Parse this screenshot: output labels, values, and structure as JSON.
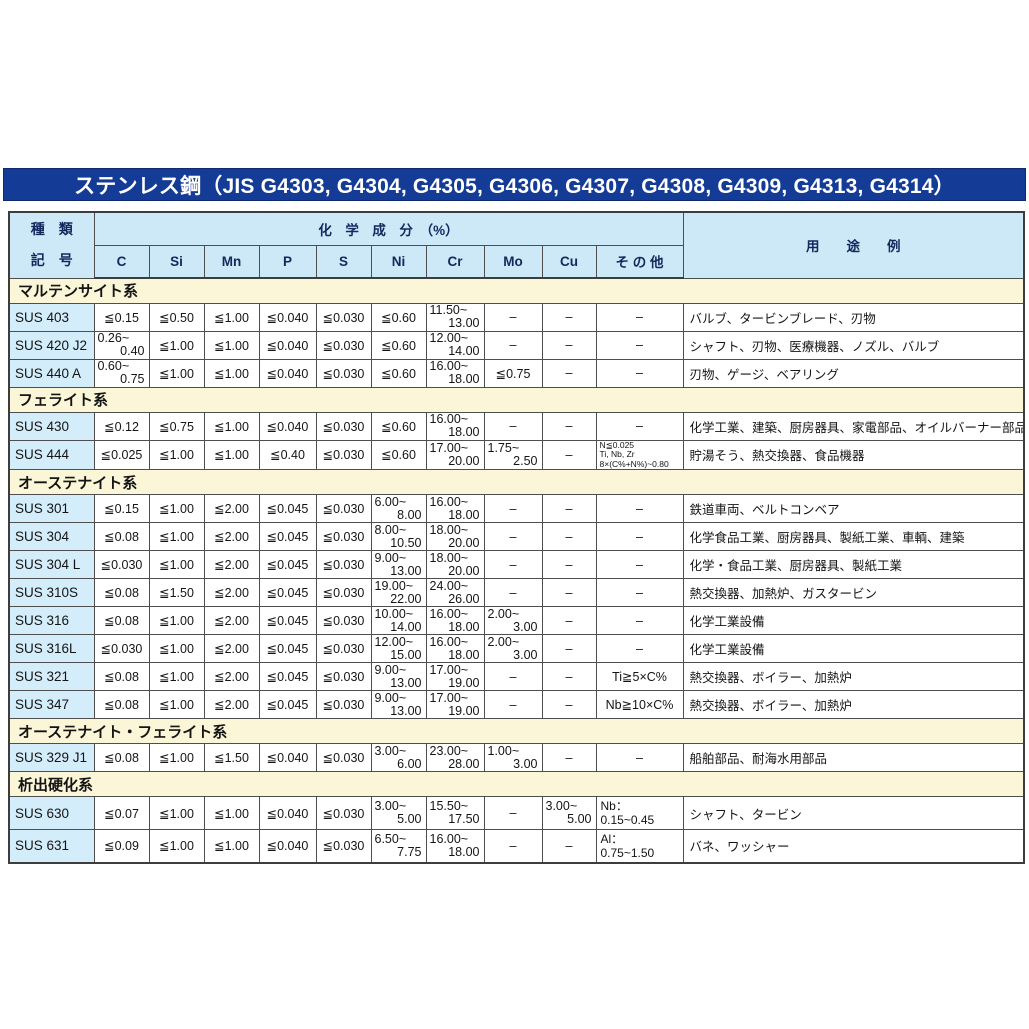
{
  "title": "ステンレス鋼（JIS G4303, G4304, G4305, G4306, G4307, G4308, G4309, G4313, G4314）",
  "header": {
    "type_top": "種　類",
    "type_bottom": "記　号",
    "chem_group": "化　学　成　分　（%）",
    "chem_cols": [
      "C",
      "Si",
      "Mn",
      "P",
      "S",
      "Ni",
      "Cr",
      "Mo",
      "Cu",
      "そ の 他"
    ],
    "usage": "用　　途　　例"
  },
  "colors": {
    "title_bg": "#143c96",
    "header_bg": "#cde8f7",
    "grade_bg": "#d4edfb",
    "section_bg": "#fbf6d8",
    "border": "#4e4e4e"
  },
  "sections": [
    {
      "name": "マルテンサイト系",
      "rows": [
        {
          "grade": "SUS 403",
          "c": "≦0.15",
          "si": "≦0.50",
          "mn": "≦1.00",
          "p": "≦0.040",
          "s": "≦0.030",
          "ni": "≦0.60",
          "cr": {
            "range": [
              "11.50~",
              "13.00"
            ]
          },
          "mo": "–",
          "cu": "–",
          "other": "–",
          "use": "バルブ、タービンブレード、刃物"
        },
        {
          "grade": "SUS 420 J2",
          "c": {
            "range": [
              "0.26~",
              "0.40"
            ]
          },
          "si": "≦1.00",
          "mn": "≦1.00",
          "p": "≦0.040",
          "s": "≦0.030",
          "ni": "≦0.60",
          "cr": {
            "range": [
              "12.00~",
              "14.00"
            ]
          },
          "mo": "–",
          "cu": "–",
          "other": "–",
          "use": "シャフト、刃物、医療機器、ノズル、バルブ"
        },
        {
          "grade": "SUS 440 A",
          "c": {
            "range": [
              "0.60~",
              "0.75"
            ]
          },
          "si": "≦1.00",
          "mn": "≦1.00",
          "p": "≦0.040",
          "s": "≦0.030",
          "ni": "≦0.60",
          "cr": {
            "range": [
              "16.00~",
              "18.00"
            ]
          },
          "mo": "≦0.75",
          "cu": "–",
          "other": "–",
          "use": "刃物、ゲージ、ベアリング"
        }
      ]
    },
    {
      "name": "フェライト系",
      "rows": [
        {
          "grade": "SUS 430",
          "c": "≦0.12",
          "si": "≦0.75",
          "mn": "≦1.00",
          "p": "≦0.040",
          "s": "≦0.030",
          "ni": "≦0.60",
          "cr": {
            "range": [
              "16.00~",
              "18.00"
            ]
          },
          "mo": "–",
          "cu": "–",
          "other": "–",
          "use": "化学工業、建築、厨房器具、家電部品、オイルバーナー部品"
        },
        {
          "grade": "SUS 444",
          "c": "≦0.025",
          "si": "≦1.00",
          "mn": "≦1.00",
          "p": "≦0.40",
          "s": "≦0.030",
          "ni": "≦0.60",
          "cr": {
            "range": [
              "17.00~",
              "20.00"
            ]
          },
          "mo": {
            "range": [
              "1.75~",
              "2.50"
            ]
          },
          "cu": "–",
          "other": {
            "lines": [
              "N≦0.025",
              "Ti, Nb, Zr",
              "8×(C%+N%)~0.80"
            ],
            "small": true
          },
          "use": "貯湯そう、熱交換器、食品機器"
        }
      ]
    },
    {
      "name": "オーステナイト系",
      "rows": [
        {
          "grade": "SUS 301",
          "c": "≦0.15",
          "si": "≦1.00",
          "mn": "≦2.00",
          "p": "≦0.045",
          "s": "≦0.030",
          "ni": {
            "range": [
              "6.00~",
              "8.00"
            ]
          },
          "cr": {
            "range": [
              "16.00~",
              "18.00"
            ]
          },
          "mo": "–",
          "cu": "–",
          "other": "–",
          "use": "鉄道車両、ベルトコンベア"
        },
        {
          "grade": "SUS 304",
          "c": "≦0.08",
          "si": "≦1.00",
          "mn": "≦2.00",
          "p": "≦0.045",
          "s": "≦0.030",
          "ni": {
            "range": [
              "8.00~",
              "10.50"
            ]
          },
          "cr": {
            "range": [
              "18.00~",
              "20.00"
            ]
          },
          "mo": "–",
          "cu": "–",
          "other": "–",
          "use": "化学食品工業、厨房器具、製紙工業、車輌、建築"
        },
        {
          "grade": "SUS 304 L",
          "c": "≦0.030",
          "si": "≦1.00",
          "mn": "≦2.00",
          "p": "≦0.045",
          "s": "≦0.030",
          "ni": {
            "range": [
              "9.00~",
              "13.00"
            ]
          },
          "cr": {
            "range": [
              "18.00~",
              "20.00"
            ]
          },
          "mo": "–",
          "cu": "–",
          "other": "–",
          "use": "化学・食品工業、厨房器具、製紙工業"
        },
        {
          "grade": "SUS 310S",
          "c": "≦0.08",
          "si": "≦1.50",
          "mn": "≦2.00",
          "p": "≦0.045",
          "s": "≦0.030",
          "ni": {
            "range": [
              "19.00~",
              "22.00"
            ]
          },
          "cr": {
            "range": [
              "24.00~",
              "26.00"
            ]
          },
          "mo": "–",
          "cu": "–",
          "other": "–",
          "use": "熱交換器、加熱炉、ガスタービン"
        },
        {
          "grade": "SUS 316",
          "c": "≦0.08",
          "si": "≦1.00",
          "mn": "≦2.00",
          "p": "≦0.045",
          "s": "≦0.030",
          "ni": {
            "range": [
              "10.00~",
              "14.00"
            ]
          },
          "cr": {
            "range": [
              "16.00~",
              "18.00"
            ]
          },
          "mo": {
            "range": [
              "2.00~",
              "3.00"
            ]
          },
          "cu": "–",
          "other": "–",
          "use": "化学工業設備"
        },
        {
          "grade": "SUS 316L",
          "c": "≦0.030",
          "si": "≦1.00",
          "mn": "≦2.00",
          "p": "≦0.045",
          "s": "≦0.030",
          "ni": {
            "range": [
              "12.00~",
              "15.00"
            ]
          },
          "cr": {
            "range": [
              "16.00~",
              "18.00"
            ]
          },
          "mo": {
            "range": [
              "2.00~",
              "3.00"
            ]
          },
          "cu": "–",
          "other": "–",
          "use": "化学工業設備"
        },
        {
          "grade": "SUS 321",
          "c": "≦0.08",
          "si": "≦1.00",
          "mn": "≦2.00",
          "p": "≦0.045",
          "s": "≦0.030",
          "ni": {
            "range": [
              "9.00~",
              "13.00"
            ]
          },
          "cr": {
            "range": [
              "17.00~",
              "19.00"
            ]
          },
          "mo": "–",
          "cu": "–",
          "other": "Ti≧5×C%",
          "use": "熱交換器、ボイラー、加熱炉"
        },
        {
          "grade": "SUS 347",
          "c": "≦0.08",
          "si": "≦1.00",
          "mn": "≦2.00",
          "p": "≦0.045",
          "s": "≦0.030",
          "ni": {
            "range": [
              "9.00~",
              "13.00"
            ]
          },
          "cr": {
            "range": [
              "17.00~",
              "19.00"
            ]
          },
          "mo": "–",
          "cu": "–",
          "other": "Nb≧10×C%",
          "use": "熱交換器、ボイラー、加熱炉"
        }
      ]
    },
    {
      "name": "オーステナイト・フェライト系",
      "rows": [
        {
          "grade": "SUS 329 J1",
          "c": "≦0.08",
          "si": "≦1.00",
          "mn": "≦1.50",
          "p": "≦0.040",
          "s": "≦0.030",
          "ni": {
            "range": [
              "3.00~",
              "6.00"
            ]
          },
          "cr": {
            "range": [
              "23.00~",
              "28.00"
            ]
          },
          "mo": {
            "range": [
              "1.00~",
              "3.00"
            ]
          },
          "cu": "–",
          "other": "–",
          "use": "船舶部品、耐海水用部品"
        }
      ]
    },
    {
      "name": "析出硬化系",
      "rows": [
        {
          "grade": "SUS 630",
          "tall": true,
          "c": "≦0.07",
          "si": "≦1.00",
          "mn": "≦1.00",
          "p": "≦0.040",
          "s": "≦0.030",
          "ni": {
            "range": [
              "3.00~",
              "5.00"
            ]
          },
          "cr": {
            "range": [
              "15.50~",
              "17.50"
            ]
          },
          "mo": "–",
          "cu": {
            "range": [
              "3.00~",
              "5.00"
            ]
          },
          "other": {
            "lines": [
              "Nb：",
              "0.15~0.45"
            ]
          },
          "use": "シャフト、タービン"
        },
        {
          "grade": "SUS 631",
          "tall": true,
          "c": "≦0.09",
          "si": "≦1.00",
          "mn": "≦1.00",
          "p": "≦0.040",
          "s": "≦0.030",
          "ni": {
            "range": [
              "6.50~",
              "7.75"
            ]
          },
          "cr": {
            "range": [
              "16.00~",
              "18.00"
            ]
          },
          "mo": "–",
          "cu": "–",
          "other": {
            "lines": [
              "Al：",
              "0.75~1.50"
            ]
          },
          "use": "バネ、ワッシャー"
        }
      ]
    }
  ]
}
